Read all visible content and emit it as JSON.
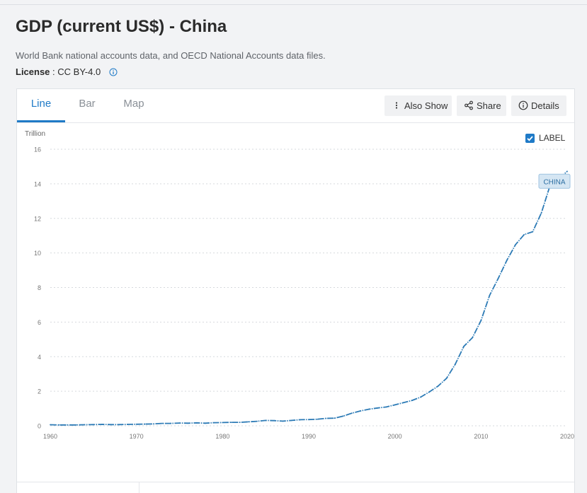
{
  "page": {
    "title": "GDP (current US$) - China",
    "source": "World Bank national accounts data, and OECD National Accounts data files.",
    "license_label": "License",
    "license_sep": " : ",
    "license_value": "CC BY-4.0"
  },
  "tabs": [
    {
      "label": "Line",
      "active": true
    },
    {
      "label": "Bar",
      "active": false
    },
    {
      "label": "Map",
      "active": false
    }
  ],
  "toolbar": {
    "also_show": "Also Show",
    "share": "Share",
    "details": "Details"
  },
  "label_toggle": {
    "label": "LABEL",
    "checked": true
  },
  "colors": {
    "accent": "#1f7ac7",
    "line": "#2d7bb6",
    "label_bg": "#d5e6f3"
  },
  "chart_data": {
    "type": "line",
    "title": "",
    "xlabel": "",
    "ylabel": "Trillion",
    "xlim": [
      1960,
      2020
    ],
    "ylim": [
      0,
      16
    ],
    "xticks": [
      1960,
      1970,
      1980,
      1990,
      2000,
      2010,
      2020
    ],
    "yticks": [
      0,
      2,
      4,
      6,
      8,
      10,
      12,
      14,
      16
    ],
    "grid": true,
    "series": [
      {
        "name": "CHINA",
        "x": [
          1960,
          1961,
          1962,
          1963,
          1964,
          1965,
          1966,
          1967,
          1968,
          1969,
          1970,
          1971,
          1972,
          1973,
          1974,
          1975,
          1976,
          1977,
          1978,
          1979,
          1980,
          1981,
          1982,
          1983,
          1984,
          1985,
          1986,
          1987,
          1988,
          1989,
          1990,
          1991,
          1992,
          1993,
          1994,
          1995,
          1996,
          1997,
          1998,
          1999,
          2000,
          2001,
          2002,
          2003,
          2004,
          2005,
          2006,
          2007,
          2008,
          2009,
          2010,
          2011,
          2012,
          2013,
          2014,
          2015,
          2016,
          2017,
          2018,
          2019,
          2020
        ],
        "values": [
          0.06,
          0.05,
          0.05,
          0.05,
          0.06,
          0.07,
          0.08,
          0.07,
          0.07,
          0.08,
          0.09,
          0.1,
          0.11,
          0.14,
          0.14,
          0.16,
          0.15,
          0.17,
          0.15,
          0.18,
          0.19,
          0.2,
          0.2,
          0.23,
          0.26,
          0.31,
          0.3,
          0.27,
          0.31,
          0.35,
          0.36,
          0.38,
          0.43,
          0.44,
          0.56,
          0.73,
          0.86,
          0.96,
          1.03,
          1.09,
          1.21,
          1.34,
          1.47,
          1.66,
          1.96,
          2.29,
          2.75,
          3.55,
          4.59,
          5.1,
          6.09,
          7.55,
          8.53,
          9.57,
          10.48,
          11.06,
          11.23,
          12.31,
          13.89,
          14.28,
          14.72
        ]
      }
    ]
  }
}
